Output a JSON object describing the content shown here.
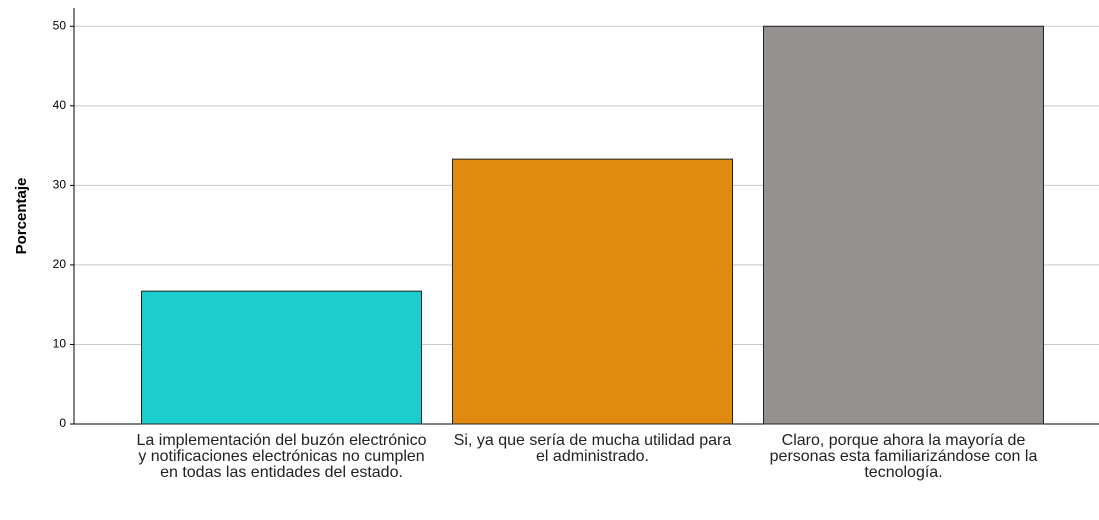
{
  "chart_data": {
    "type": "bar",
    "y_label": "Porcentaje",
    "categories": [
      "La implementación del buzón electrónico y notificaciones electrónicas no cumplen en todas las entidades del estado.",
      "Si, ya que sería de mucha utilidad para el administrado.",
      "Claro, porque ahora la mayoría de personas esta familiarizándose con la tecnología."
    ],
    "values": [
      16.7,
      33.3,
      50
    ],
    "colors": [
      "#1ccdcd",
      "#e08b0f",
      "#959190"
    ],
    "ylim": [
      0,
      52.3
    ],
    "yticks": [
      0,
      10,
      20,
      30,
      40,
      50
    ],
    "grid": true
  }
}
